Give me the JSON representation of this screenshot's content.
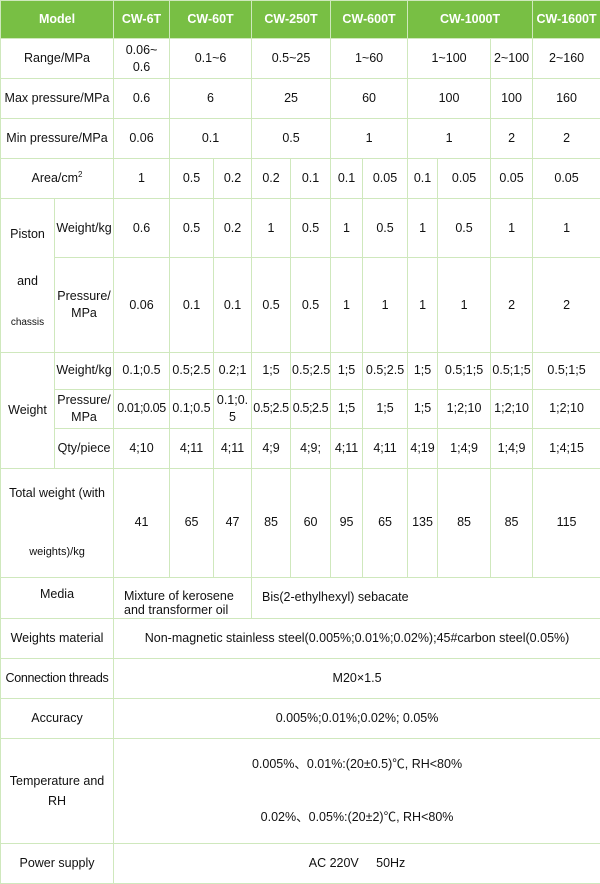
{
  "header": {
    "model": "Model",
    "models": [
      "CW-6T",
      "CW-60T",
      "CW-250T",
      "CW-600T",
      "CW-1000T",
      "CW-1600T"
    ]
  },
  "range": {
    "label": "Range/MPa",
    "values": [
      "0.06~\n0.6",
      "0.1~6",
      "0.5~25",
      "1~60",
      "1~100",
      "2~100",
      "2~160"
    ]
  },
  "max_pressure": {
    "label": "Max pressure/MPa",
    "values": [
      "0.6",
      "6",
      "25",
      "60",
      "100",
      "100",
      "160"
    ]
  },
  "min_pressure": {
    "label": "Min pressure/MPa",
    "values": [
      "0.06",
      "0.1",
      "0.5",
      "1",
      "1",
      "2",
      "2"
    ]
  },
  "area": {
    "label": "Area/cm",
    "sup": "2",
    "values": [
      "1",
      "0.5",
      "0.2",
      "0.2",
      "0.1",
      "0.1",
      "0.05",
      "0.1",
      "0.05",
      "0.05",
      "0.05"
    ]
  },
  "piston": {
    "label_1": "Piston",
    "label_2": "and",
    "label_3": "chassis",
    "weight": {
      "label": "Weight/kg",
      "values": [
        "0.6",
        "0.5",
        "0.2",
        "1",
        "0.5",
        "1",
        "0.5",
        "1",
        "0.5",
        "1",
        "1"
      ]
    },
    "pressure": {
      "label": "Pressure/\nMPa",
      "values": [
        "0.06",
        "0.1",
        "0.1",
        "0.5",
        "0.5",
        "1",
        "1",
        "1",
        "1",
        "2",
        "2"
      ]
    }
  },
  "weight": {
    "label": "Weight",
    "weight": {
      "label": "Weight/kg",
      "values": [
        "0.1;0.5",
        "0.5;2.5",
        "0.2;1",
        "1;5",
        "0.5;2.5",
        "1;5",
        "0.5;2.5",
        "1;5",
        "0.5;1;5",
        "0.5;1;5",
        "0.5;1;5"
      ]
    },
    "pressure": {
      "label": "Pressure/\nMPa",
      "values": [
        "0.01;0.05",
        "0.1;0.5",
        "0.1;0.\n5",
        "0.5;2.5",
        "0.5;2.5",
        "1;5",
        "1;5",
        "1;5",
        "1;2;10",
        "1;2;10",
        "1;2;10"
      ]
    },
    "qty": {
      "label": "Qty/piece",
      "values": [
        "4;10",
        "4;11",
        "4;11",
        "4;9",
        "4;9;",
        "4;11",
        "4;11",
        "4;19",
        "1;4;9",
        "1;4;9",
        "1;4;15"
      ]
    }
  },
  "total_weight": {
    "label_1": "Total weight (with",
    "label_2": "weights)/kg",
    "values": [
      "41",
      "65",
      "47",
      "85",
      "60",
      "95",
      "65",
      "135",
      "85",
      "85",
      "115"
    ]
  },
  "media": {
    "label": "Media",
    "values": [
      "Mixture of kerosene\nand transformer oil",
      "Bis(2-ethylhexyl) sebacate"
    ]
  },
  "weights_material": {
    "label": "Weights material",
    "value": "Non-magnetic stainless steel(0.005%;0.01%;0.02%);45#carbon steel(0.05%)"
  },
  "connection": {
    "label": "Connection threads",
    "value": "M20×1.5"
  },
  "accuracy": {
    "label": "Accuracy",
    "value": "0.005%;0.01%;0.02%; 0.05%"
  },
  "temperature": {
    "label": "Temperature and\nRH",
    "values": [
      "0.005%、0.01%:(20±0.5)℃, RH<80%",
      "0.02%、0.05%:(20±2)℃, RH<80%"
    ]
  },
  "power": {
    "label": "Power supply",
    "value": "AC 220V     50Hz"
  },
  "colors": {
    "header_bg": "#78bf44",
    "border": "#cfe8bd"
  }
}
